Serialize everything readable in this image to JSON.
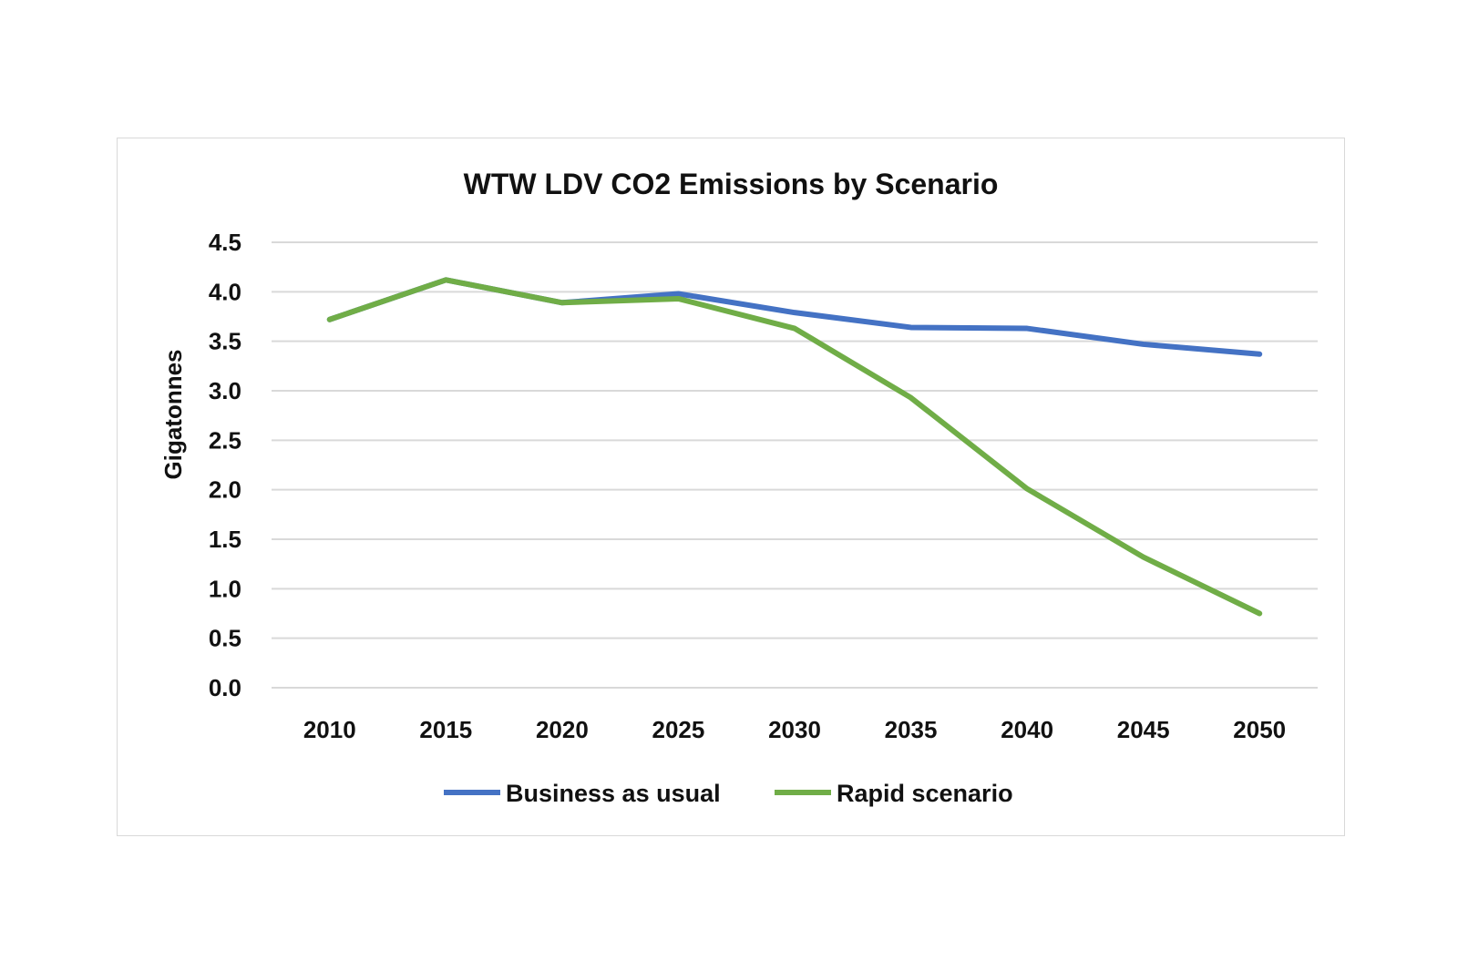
{
  "chart_data": {
    "type": "line",
    "title": "WTW LDV CO2 Emissions by Scenario",
    "xlabel": "",
    "ylabel": "Gigatonnes",
    "categories": [
      "2010",
      "2015",
      "2020",
      "2025",
      "2030",
      "2035",
      "2040",
      "2045",
      "2050"
    ],
    "yticks": [
      "0.0",
      "0.5",
      "1.0",
      "1.5",
      "2.0",
      "2.5",
      "3.0",
      "3.5",
      "4.0",
      "4.5"
    ],
    "ylim": [
      0,
      4.5
    ],
    "grid": true,
    "legend_position": "bottom",
    "series": [
      {
        "name": "Business as usual",
        "color": "#4472c4",
        "values": [
          3.72,
          4.12,
          3.89,
          3.98,
          3.79,
          3.64,
          3.63,
          3.47,
          3.37
        ]
      },
      {
        "name": "Rapid scenario",
        "color": "#70ad47",
        "values": [
          3.72,
          4.12,
          3.89,
          3.93,
          3.63,
          2.93,
          2.01,
          1.32,
          0.75
        ]
      }
    ]
  }
}
